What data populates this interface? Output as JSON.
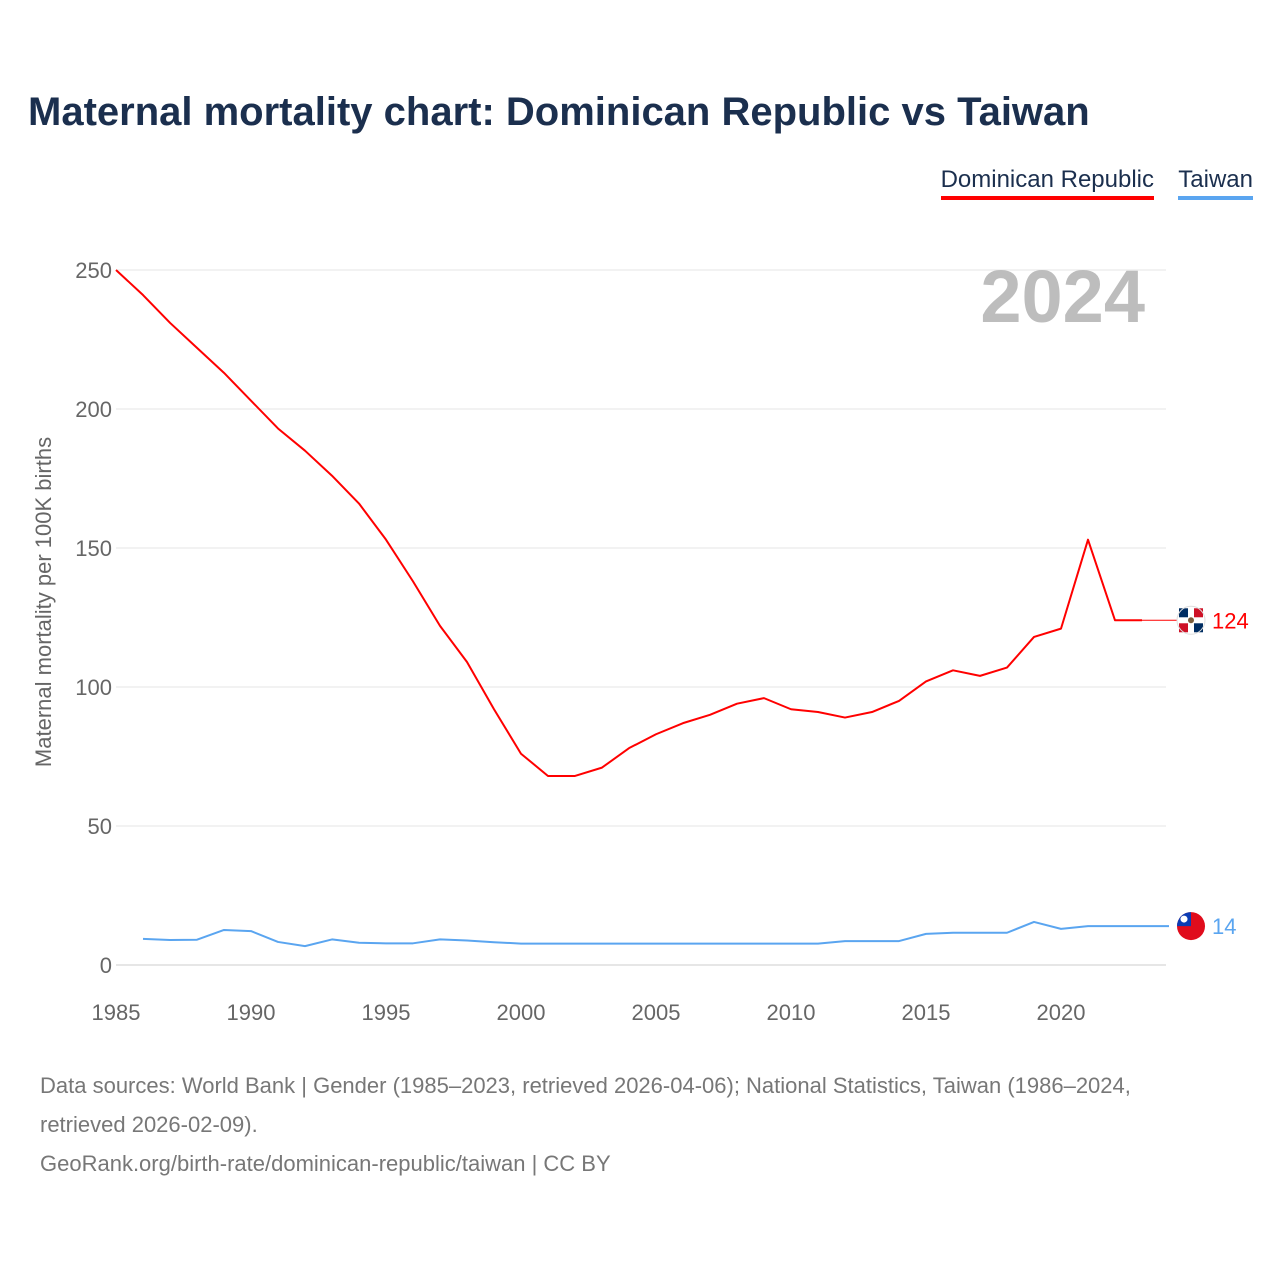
{
  "title": "Maternal mortality chart: Dominican Republic vs Taiwan",
  "year_label": "2024",
  "footer": {
    "sources": "Data sources: World Bank | Gender (1985–2023, retrieved 2026-04-06); National Statistics, Taiwan (1986–2024, retrieved 2026-02-09).",
    "link": "GeoRank.org/birth-rate/dominican-republic/taiwan | CC BY"
  },
  "chart_data": {
    "type": "line",
    "title": "Maternal mortality chart: Dominican Republic vs Taiwan",
    "xlabel": "",
    "ylabel": "Maternal mortality per 100K births",
    "xlim": [
      1985,
      2024
    ],
    "ylim": [
      0,
      250
    ],
    "x_ticks": [
      1985,
      1990,
      1995,
      2000,
      2005,
      2010,
      2015,
      2020
    ],
    "y_ticks": [
      0,
      50,
      100,
      150,
      200,
      250
    ],
    "grid": true,
    "legend_position": "top-right",
    "series": [
      {
        "name": "Dominican Republic",
        "color": "#ff0000",
        "end_label": "124",
        "x": [
          1985,
          1986,
          1987,
          1988,
          1989,
          1990,
          1991,
          1992,
          1993,
          1994,
          1995,
          1996,
          1997,
          1998,
          1999,
          2000,
          2001,
          2002,
          2003,
          2004,
          2005,
          2006,
          2007,
          2008,
          2009,
          2010,
          2011,
          2012,
          2013,
          2014,
          2015,
          2016,
          2017,
          2018,
          2019,
          2020,
          2021,
          2022,
          2023
        ],
        "values": [
          250,
          241,
          231,
          222,
          213,
          203,
          193,
          185,
          176,
          166,
          153,
          138,
          122,
          109,
          92,
          76,
          68,
          68,
          71,
          78,
          83,
          87,
          90,
          94,
          96,
          92,
          91,
          89,
          91,
          95,
          102,
          106,
          104,
          107,
          118,
          121,
          153,
          124,
          124
        ]
      },
      {
        "name": "Taiwan",
        "color": "#5aa5f0",
        "end_label": "14",
        "x": [
          1986,
          1987,
          1988,
          1989,
          1990,
          1991,
          1992,
          1993,
          1994,
          1995,
          1996,
          1997,
          1998,
          1999,
          2000,
          2001,
          2002,
          2003,
          2004,
          2005,
          2006,
          2007,
          2008,
          2009,
          2010,
          2011,
          2012,
          2013,
          2014,
          2015,
          2016,
          2017,
          2018,
          2019,
          2020,
          2021,
          2022,
          2023,
          2024
        ],
        "values": [
          9.4,
          9,
          9.1,
          12.6,
          12.2,
          8.3,
          6.8,
          9.2,
          8,
          7.8,
          7.8,
          9.2,
          8.8,
          8.2,
          7.7,
          7.7,
          7.7,
          7.7,
          7.7,
          7.7,
          7.7,
          7.7,
          7.7,
          7.7,
          7.7,
          7.7,
          8.6,
          8.6,
          8.6,
          11.2,
          11.6,
          11.6,
          11.6,
          15.5,
          13,
          14,
          14,
          14,
          14
        ]
      }
    ]
  }
}
